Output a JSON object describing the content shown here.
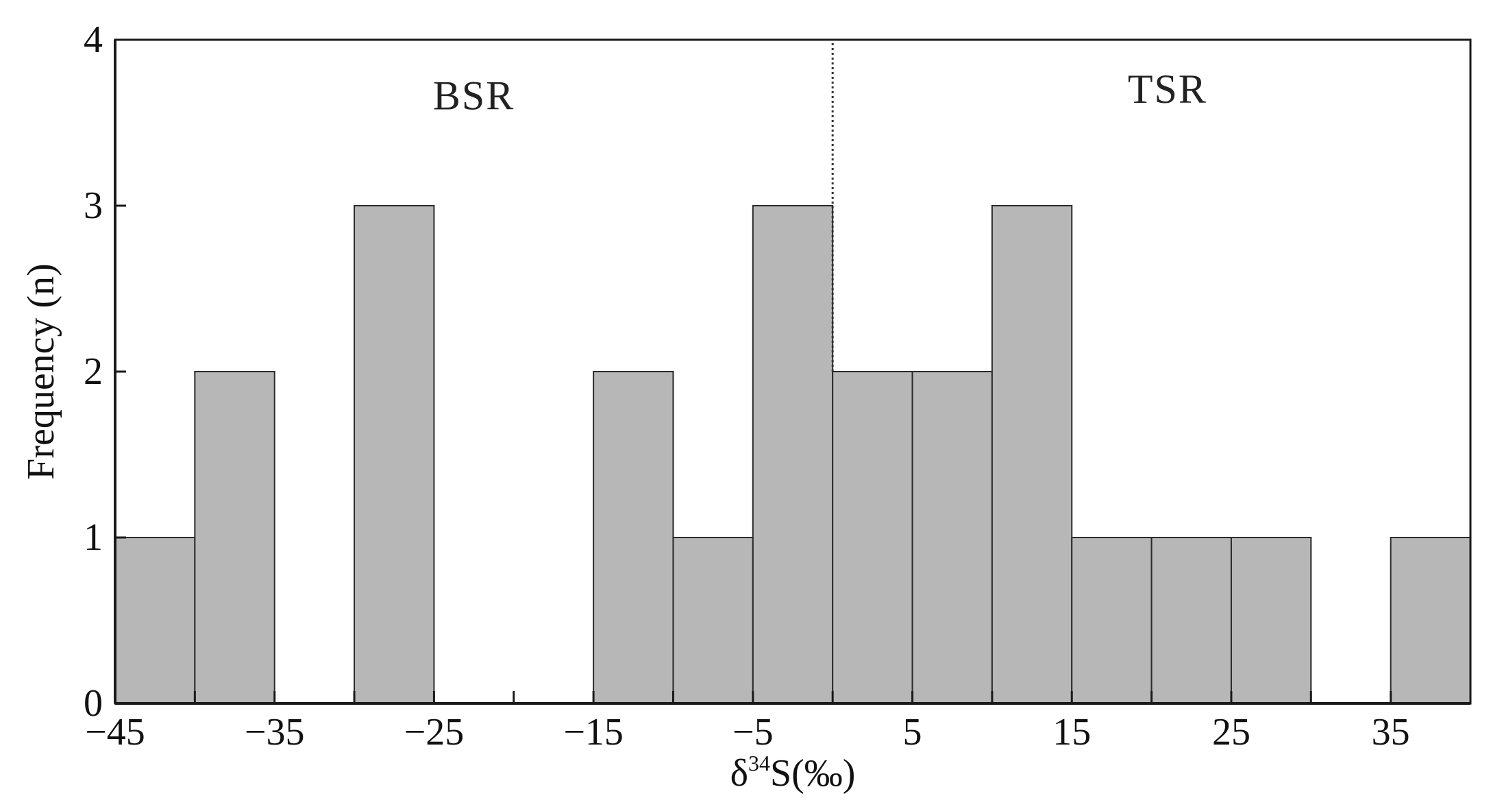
{
  "chart_data": {
    "type": "bar",
    "title": "",
    "xlabel": {
      "prefix": "δ",
      "superscript": "34",
      "suffix": "S(‰)"
    },
    "ylabel": "Frequency (n)",
    "xlim": [
      -45,
      40
    ],
    "ylim": [
      0,
      4
    ],
    "bin_width": 5,
    "x_ticks": [
      -45,
      -40,
      -35,
      -30,
      -25,
      -20,
      -15,
      -10,
      -5,
      0,
      5,
      10,
      15,
      20,
      25,
      30,
      35,
      40
    ],
    "x_tick_labels": [
      {
        "value": -45,
        "text": "−45"
      },
      {
        "value": -35,
        "text": "−35"
      },
      {
        "value": -25,
        "text": "−25"
      },
      {
        "value": -15,
        "text": "−15"
      },
      {
        "value": -5,
        "text": "−5"
      },
      {
        "value": 5,
        "text": "5"
      },
      {
        "value": 15,
        "text": "15"
      },
      {
        "value": 25,
        "text": "25"
      },
      {
        "value": 35,
        "text": "35"
      }
    ],
    "y_ticks": [
      0,
      1,
      2,
      3,
      4
    ],
    "y_tick_labels": [
      "0",
      "1",
      "2",
      "3",
      "4"
    ],
    "bins": [
      {
        "start": -45,
        "end": -40,
        "count": 1
      },
      {
        "start": -40,
        "end": -35,
        "count": 2
      },
      {
        "start": -35,
        "end": -30,
        "count": 0
      },
      {
        "start": -30,
        "end": -25,
        "count": 3
      },
      {
        "start": -25,
        "end": -20,
        "count": 0
      },
      {
        "start": -20,
        "end": -15,
        "count": 0
      },
      {
        "start": -15,
        "end": -10,
        "count": 2
      },
      {
        "start": -10,
        "end": -5,
        "count": 1
      },
      {
        "start": -5,
        "end": 0,
        "count": 3
      },
      {
        "start": 0,
        "end": 5,
        "count": 2
      },
      {
        "start": 5,
        "end": 10,
        "count": 2
      },
      {
        "start": 10,
        "end": 15,
        "count": 3
      },
      {
        "start": 15,
        "end": 20,
        "count": 1
      },
      {
        "start": 20,
        "end": 25,
        "count": 1
      },
      {
        "start": 25,
        "end": 30,
        "count": 1
      },
      {
        "start": 30,
        "end": 35,
        "count": 0
      },
      {
        "start": 35,
        "end": 40,
        "count": 1
      }
    ],
    "divider": {
      "x": 0,
      "y_from": 2,
      "y_to": 4,
      "style": "dotted"
    },
    "regions": [
      {
        "label": "BSR",
        "center_x": -22.5,
        "y": 3.58
      },
      {
        "label": "TSR",
        "center_x": 21,
        "y": 3.62
      }
    ],
    "colors": {
      "bar_fill": "#b6b7b6",
      "bar_stroke": "#2a2a2a",
      "axis": "#1a1a1a",
      "background": "#ffffff"
    },
    "grid": false,
    "legend": "none"
  }
}
